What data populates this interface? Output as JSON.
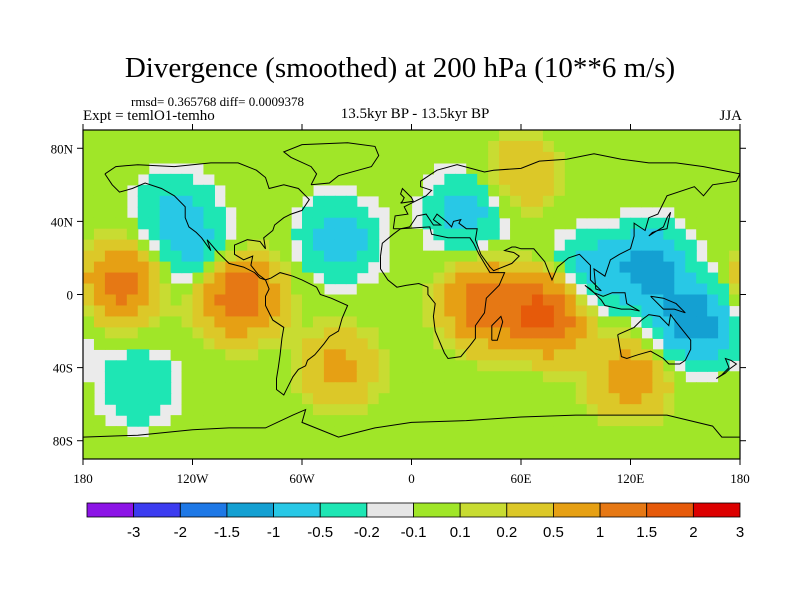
{
  "title": "Divergence (smoothed) at 200 hPa (10**6 m/s)",
  "stats": "rmsd= 0.365768 diff= 0.0009378",
  "experiment": "Expt = temlO1-temho",
  "period": "13.5kyr BP - 13.5kyr BP",
  "season": "JJA",
  "map": {
    "projection": "cylindrical-equidistant",
    "lon_range": [
      -180,
      180
    ],
    "lat_range": [
      -90,
      90
    ],
    "x_ticks": [
      {
        "value": -180,
        "label": "180"
      },
      {
        "value": -120,
        "label": "120W"
      },
      {
        "value": -60,
        "label": "60W"
      },
      {
        "value": 0,
        "label": "0"
      },
      {
        "value": 60,
        "label": "60E"
      },
      {
        "value": 120,
        "label": "120E"
      },
      {
        "value": 180,
        "label": "180"
      }
    ],
    "y_ticks": [
      {
        "value": 80,
        "label": "80N"
      },
      {
        "value": 40,
        "label": "40N"
      },
      {
        "value": 0,
        "label": "0"
      },
      {
        "value": -40,
        "label": "40S"
      },
      {
        "value": -80,
        "label": "80S"
      }
    ],
    "background_color": "#ebebeb",
    "coast_color": "#000000"
  },
  "colorbar": {
    "colors": [
      "#8c14e6",
      "#3c3cf0",
      "#1e78e6",
      "#14a0d2",
      "#28c8e6",
      "#1ee6b4",
      "#e6e6e6",
      "#a0e628",
      "#c8dc32",
      "#dcc828",
      "#e6a014",
      "#e67814",
      "#e65a0a",
      "#dc0000"
    ],
    "labels": [
      "-3",
      "-2",
      "-1.5",
      "-1",
      "-0.5",
      "-0.2",
      "-0.1",
      "0.1",
      "0.2",
      "0.5",
      "1",
      "1.5",
      "2",
      "3"
    ]
  },
  "chart_data": {
    "type": "heatmap",
    "title": "Divergence (smoothed) at 200 hPa (10**6 m/s)",
    "levels": [
      -3,
      -2,
      -1.5,
      -1,
      -0.5,
      -0.2,
      -0.1,
      0.1,
      0.2,
      0.5,
      1,
      1.5,
      2,
      3
    ],
    "field_features": [
      {
        "lon": -160,
        "lat": 5,
        "value": 1.2
      },
      {
        "lon": -95,
        "lat": 0,
        "value": 1.6
      },
      {
        "lon": -115,
        "lat": 20,
        "value": -0.6
      },
      {
        "lon": -40,
        "lat": 30,
        "value": -0.8
      },
      {
        "lon": 40,
        "lat": -5,
        "value": 1.4
      },
      {
        "lon": 75,
        "lat": -10,
        "value": 1.8
      },
      {
        "lon": 95,
        "lat": 10,
        "value": -0.8
      },
      {
        "lon": 130,
        "lat": 15,
        "value": -1.2
      },
      {
        "lon": 155,
        "lat": -15,
        "value": -1.4
      },
      {
        "lon": -130,
        "lat": 45,
        "value": -0.6
      },
      {
        "lon": 30,
        "lat": 45,
        "value": -0.7
      },
      {
        "lon": -40,
        "lat": -40,
        "value": 0.6
      },
      {
        "lon": 120,
        "lat": -45,
        "value": 0.8
      },
      {
        "lon": -150,
        "lat": -50,
        "value": -0.5
      },
      {
        "lon": 60,
        "lat": 65,
        "value": 0.5
      }
    ]
  }
}
